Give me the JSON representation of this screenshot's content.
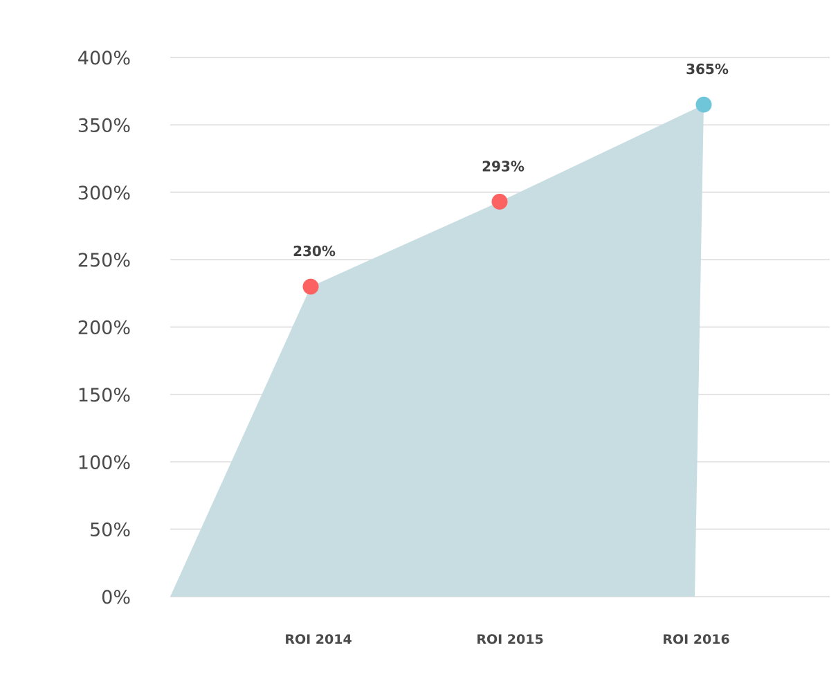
{
  "chart_data": {
    "type": "area",
    "title": "",
    "xlabel": "",
    "ylabel": "",
    "categories": [
      "ROI 2014",
      "ROI 2015",
      "ROI 2016"
    ],
    "values": [
      230,
      293,
      365
    ],
    "data_labels": [
      "230%",
      "293%",
      "365%"
    ],
    "ylim": [
      0,
      400
    ],
    "yticks": [
      0,
      50,
      100,
      150,
      200,
      250,
      300,
      350,
      400
    ],
    "ytick_labels": [
      "0%",
      "50%",
      "100%",
      "150%",
      "200%",
      "250%",
      "300%",
      "350%",
      "400%"
    ],
    "grid": true,
    "legend": "none",
    "colors": {
      "area": "#c7dde2",
      "marker_default": "#fc6262",
      "marker_last": "#6ec6d8",
      "grid": "#e3e3e3"
    }
  }
}
